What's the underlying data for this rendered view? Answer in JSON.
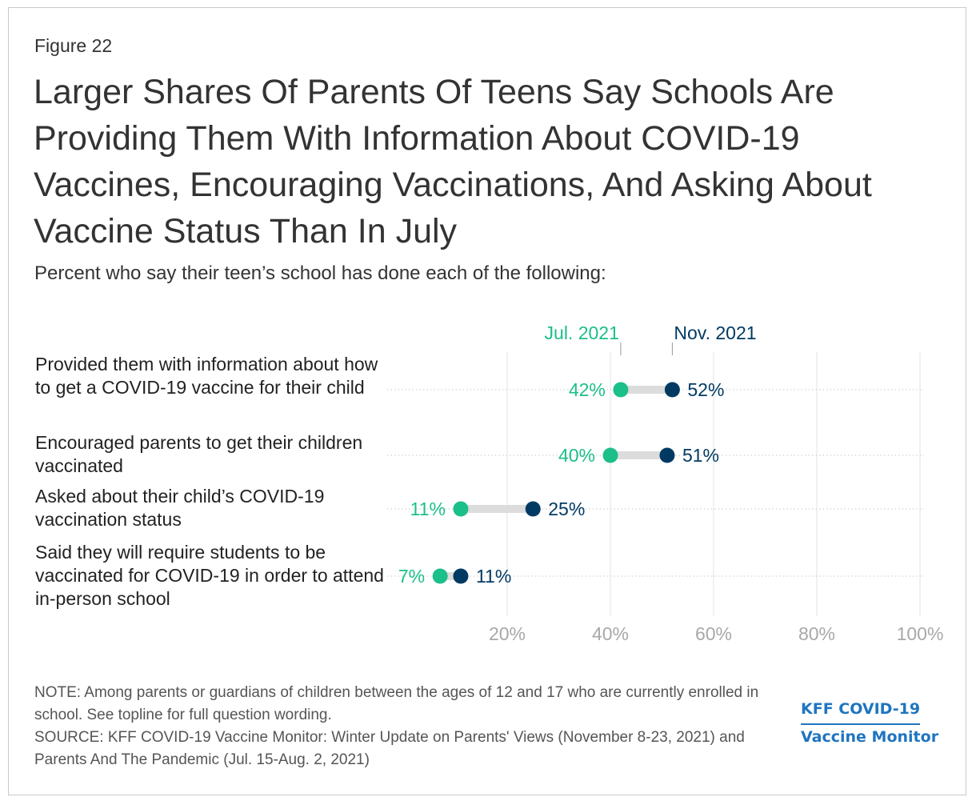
{
  "figure_label": "Figure 22",
  "title": "Larger Shares Of Parents Of Teens Say Schools Are Providing Them With Information About COVID-19 Vaccines, Encouraging Vaccinations, And Asking About Vaccine Status Than In July",
  "subtitle": "Percent who say their teen’s school has done each of the following:",
  "row_labels": [
    "Provided them with information about how to get a COVID-19 vaccine for their child",
    "Encouraged parents to get their children vaccinated",
    "Asked about their child’s COVID-19 vaccination status",
    "Said they will require students to be vaccinated for COVID-19 in order to attend in-person school"
  ],
  "note": "NOTE: Among parents or guardians of children between the ages of 12 and 17 who are currently enrolled in school. See topline for full question wording.",
  "source": "SOURCE: KFF COVID-19 Vaccine Monitor: Winter Update on Parents' Views (November 8-23, 2021) and Parents And The Pandemic (Jul. 15-Aug. 2, 2021)",
  "logo": {
    "line1": "KFF COVID-19",
    "line2": "Vaccine Monitor"
  },
  "colors": {
    "jul": "#1bbf8a",
    "nov": "#003a63",
    "connector": "#dcdcdc",
    "grid": "#e3e3e3",
    "tick": "#a8a8a8",
    "logo": "#1f75c0"
  },
  "chart_data": {
    "type": "dot-plot",
    "title": "Percent who say their teen’s school has done each of the following:",
    "categories": [
      "Provided them with information about how to get a COVID-19 vaccine for their child",
      "Encouraged parents to get their children vaccinated",
      "Asked about their child’s COVID-19 vaccination status",
      "Said they will require students to be vaccinated for COVID-19 in order to attend in-person school"
    ],
    "series": [
      {
        "name": "Jul. 2021",
        "values": [
          42,
          40,
          11,
          7
        ],
        "labels": [
          "42%",
          "40%",
          "11%",
          "7%"
        ]
      },
      {
        "name": "Nov. 2021",
        "values": [
          52,
          51,
          25,
          11
        ],
        "labels": [
          "52%",
          "51%",
          "25%",
          "11%"
        ]
      }
    ],
    "x_ticks": [
      20,
      40,
      60,
      80,
      100
    ],
    "x_tick_labels": [
      "20%",
      "40%",
      "60%",
      "80%",
      "100%"
    ],
    "xlim": [
      0,
      100
    ],
    "grid": true
  }
}
